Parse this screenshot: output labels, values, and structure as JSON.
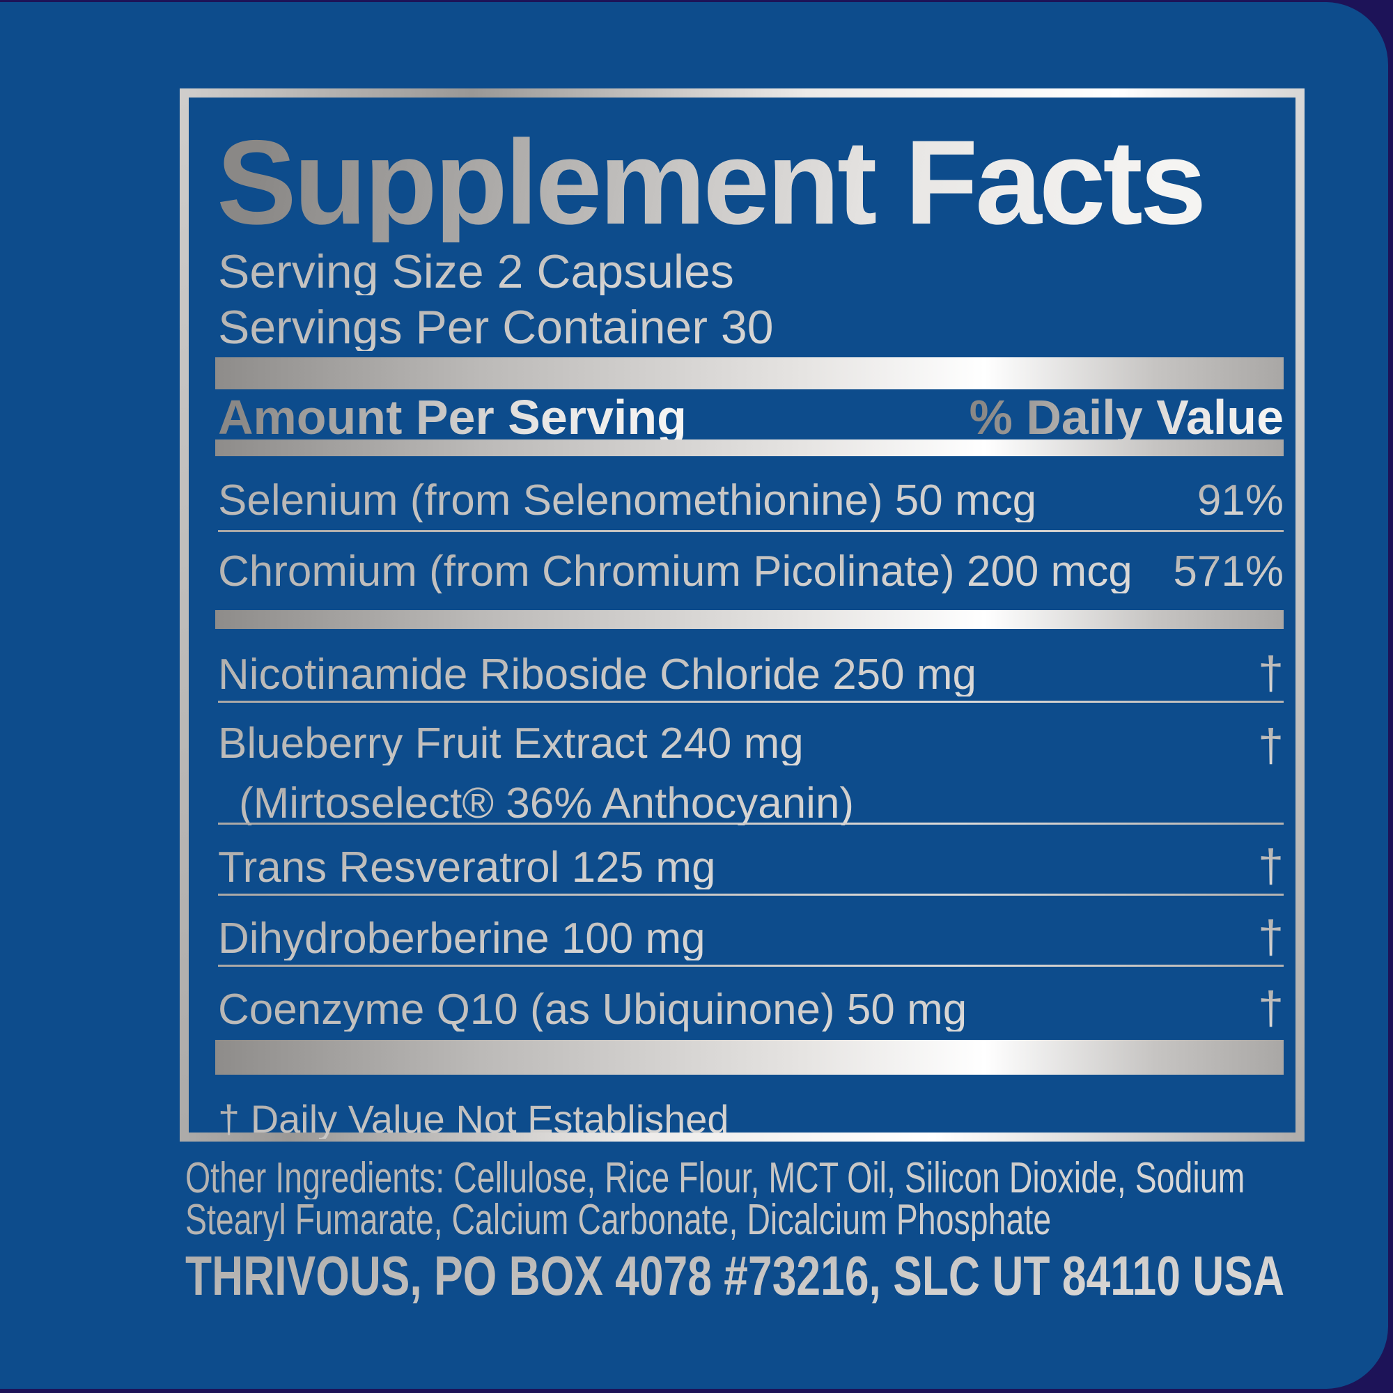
{
  "facts": {
    "title": "Supplement Facts",
    "serving_size": "Serving Size 2 Capsules",
    "servings_per_container": "Servings Per Container 30",
    "header": {
      "amount": "Amount Per Serving",
      "daily_value": "% Daily Value"
    },
    "rows": [
      {
        "name": "Selenium (from Selenomethionine) 50 mcg",
        "daily_value": "91%"
      },
      {
        "name": "Chromium (from Chromium Picolinate) 200 mcg",
        "daily_value": "571%"
      },
      {
        "name": "Nicotinamide Riboside Chloride 250 mg",
        "daily_value": "†"
      },
      {
        "name": "Blueberry Fruit Extract 240 mg",
        "name_line2": "(Mirtoselect® 36% Anthocyanin)",
        "daily_value": "†"
      },
      {
        "name": "Trans Resveratrol 125 mg",
        "daily_value": "†"
      },
      {
        "name": "Dihydroberberine 100 mg",
        "daily_value": "†"
      },
      {
        "name": "Coenzyme Q10 (as Ubiquinone) 50 mg",
        "daily_value": "†"
      }
    ],
    "footnote": "† Daily Value Not Established",
    "other_ingredients_lines": [
      "Other Ingredients: Cellulose, Rice Flour, MCT Oil, Silicon Dioxide, Sodium",
      "Stearyl Fumarate, Calcium Carbonate, Dicalcium Phosphate"
    ],
    "address": "THRIVOUS, PO BOX 4078 #73216, SLC UT 84110 USA",
    "colors": {
      "panel_blue": "#0d4c8c",
      "background_navy": "#1d1358",
      "silver_bright": "#ffffff",
      "silver_mid": "#c8c6c4",
      "silver_dark": "#8e8c8a"
    }
  }
}
